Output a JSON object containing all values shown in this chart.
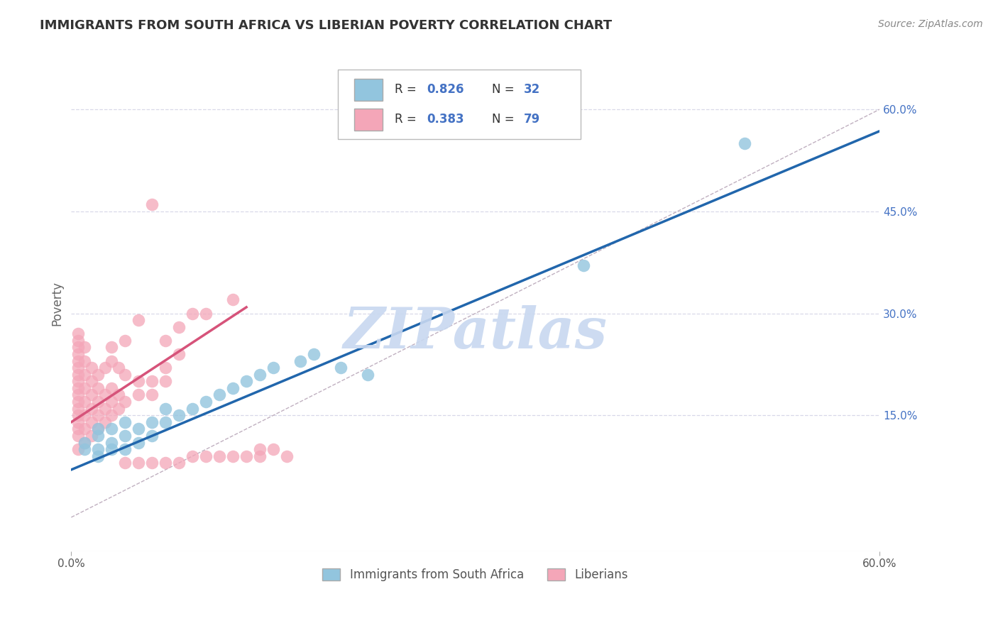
{
  "title": "IMMIGRANTS FROM SOUTH AFRICA VS LIBERIAN POVERTY CORRELATION CHART",
  "source": "Source: ZipAtlas.com",
  "ylabel": "Poverty",
  "right_yticks": [
    "60.0%",
    "45.0%",
    "30.0%",
    "15.0%"
  ],
  "right_ytick_vals": [
    0.6,
    0.45,
    0.3,
    0.15
  ],
  "legend_label1": "Immigrants from South Africa",
  "legend_label2": "Liberians",
  "watermark": "ZIPatlas",
  "xlim": [
    0.0,
    0.6
  ],
  "ylim": [
    -0.05,
    0.68
  ],
  "blue_color": "#92C5DE",
  "pink_color": "#F4A6B8",
  "blue_line_color": "#2166AC",
  "pink_line_color": "#D6537A",
  "blue_dots": [
    [
      0.01,
      0.1
    ],
    [
      0.01,
      0.11
    ],
    [
      0.02,
      0.09
    ],
    [
      0.02,
      0.1
    ],
    [
      0.02,
      0.12
    ],
    [
      0.02,
      0.13
    ],
    [
      0.03,
      0.1
    ],
    [
      0.03,
      0.11
    ],
    [
      0.03,
      0.13
    ],
    [
      0.04,
      0.1
    ],
    [
      0.04,
      0.12
    ],
    [
      0.04,
      0.14
    ],
    [
      0.05,
      0.11
    ],
    [
      0.05,
      0.13
    ],
    [
      0.06,
      0.12
    ],
    [
      0.06,
      0.14
    ],
    [
      0.07,
      0.14
    ],
    [
      0.07,
      0.16
    ],
    [
      0.08,
      0.15
    ],
    [
      0.09,
      0.16
    ],
    [
      0.1,
      0.17
    ],
    [
      0.11,
      0.18
    ],
    [
      0.12,
      0.19
    ],
    [
      0.13,
      0.2
    ],
    [
      0.14,
      0.21
    ],
    [
      0.15,
      0.22
    ],
    [
      0.17,
      0.23
    ],
    [
      0.18,
      0.24
    ],
    [
      0.2,
      0.22
    ],
    [
      0.22,
      0.21
    ],
    [
      0.38,
      0.37
    ],
    [
      0.5,
      0.55
    ]
  ],
  "pink_dots": [
    [
      0.005,
      0.1
    ],
    [
      0.005,
      0.12
    ],
    [
      0.005,
      0.13
    ],
    [
      0.005,
      0.14
    ],
    [
      0.005,
      0.15
    ],
    [
      0.005,
      0.16
    ],
    [
      0.005,
      0.17
    ],
    [
      0.005,
      0.18
    ],
    [
      0.005,
      0.19
    ],
    [
      0.005,
      0.2
    ],
    [
      0.005,
      0.21
    ],
    [
      0.005,
      0.22
    ],
    [
      0.005,
      0.23
    ],
    [
      0.005,
      0.24
    ],
    [
      0.005,
      0.25
    ],
    [
      0.005,
      0.26
    ],
    [
      0.005,
      0.27
    ],
    [
      0.01,
      0.11
    ],
    [
      0.01,
      0.13
    ],
    [
      0.01,
      0.15
    ],
    [
      0.01,
      0.17
    ],
    [
      0.01,
      0.19
    ],
    [
      0.01,
      0.21
    ],
    [
      0.01,
      0.23
    ],
    [
      0.01,
      0.25
    ],
    [
      0.015,
      0.12
    ],
    [
      0.015,
      0.14
    ],
    [
      0.015,
      0.16
    ],
    [
      0.015,
      0.18
    ],
    [
      0.015,
      0.2
    ],
    [
      0.015,
      0.22
    ],
    [
      0.02,
      0.13
    ],
    [
      0.02,
      0.15
    ],
    [
      0.02,
      0.17
    ],
    [
      0.02,
      0.19
    ],
    [
      0.02,
      0.21
    ],
    [
      0.025,
      0.14
    ],
    [
      0.025,
      0.16
    ],
    [
      0.025,
      0.18
    ],
    [
      0.025,
      0.22
    ],
    [
      0.03,
      0.15
    ],
    [
      0.03,
      0.17
    ],
    [
      0.03,
      0.19
    ],
    [
      0.03,
      0.23
    ],
    [
      0.03,
      0.25
    ],
    [
      0.035,
      0.16
    ],
    [
      0.035,
      0.18
    ],
    [
      0.035,
      0.22
    ],
    [
      0.04,
      0.17
    ],
    [
      0.04,
      0.21
    ],
    [
      0.04,
      0.26
    ],
    [
      0.05,
      0.18
    ],
    [
      0.05,
      0.2
    ],
    [
      0.05,
      0.29
    ],
    [
      0.06,
      0.18
    ],
    [
      0.06,
      0.2
    ],
    [
      0.07,
      0.2
    ],
    [
      0.07,
      0.22
    ],
    [
      0.07,
      0.26
    ],
    [
      0.08,
      0.24
    ],
    [
      0.08,
      0.28
    ],
    [
      0.09,
      0.3
    ],
    [
      0.1,
      0.3
    ],
    [
      0.12,
      0.32
    ],
    [
      0.06,
      0.46
    ],
    [
      0.04,
      0.08
    ],
    [
      0.05,
      0.08
    ],
    [
      0.06,
      0.08
    ],
    [
      0.07,
      0.08
    ],
    [
      0.08,
      0.08
    ],
    [
      0.09,
      0.09
    ],
    [
      0.1,
      0.09
    ],
    [
      0.11,
      0.09
    ],
    [
      0.12,
      0.09
    ],
    [
      0.13,
      0.09
    ],
    [
      0.14,
      0.09
    ],
    [
      0.14,
      0.1
    ],
    [
      0.15,
      0.1
    ],
    [
      0.16,
      0.09
    ]
  ],
  "blue_line_x": [
    0.0,
    0.6
  ],
  "blue_line_y_intercept": 0.07,
  "blue_line_slope": 0.83,
  "pink_line_x": [
    0.0,
    0.13
  ],
  "pink_line_y_intercept": 0.14,
  "pink_line_slope": 1.3
}
